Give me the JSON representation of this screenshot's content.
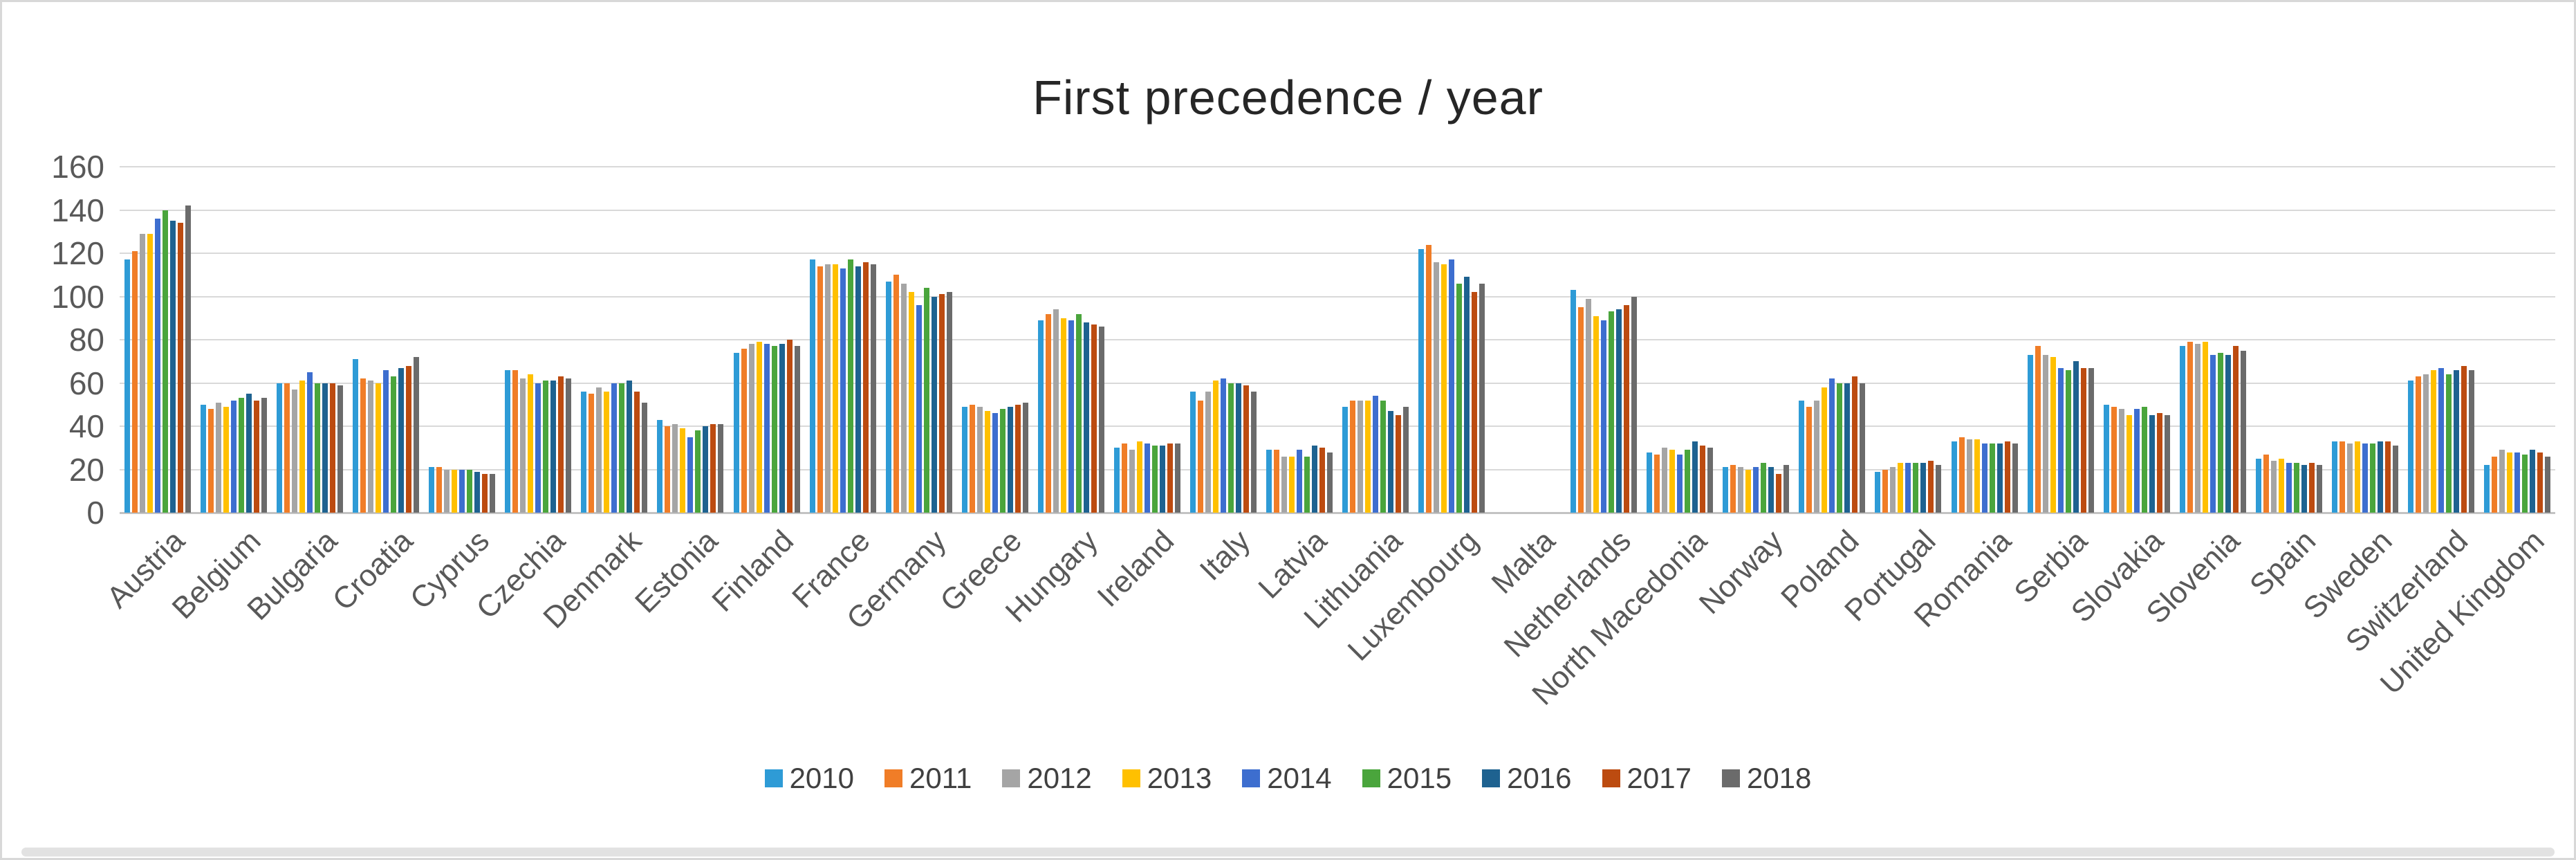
{
  "title": "First precedence / year",
  "chart_data": {
    "type": "bar",
    "title": "First precedence / year",
    "xlabel": "",
    "ylabel": "",
    "ylim": [
      0,
      160
    ],
    "ytick_step": 20,
    "yticks": [
      0,
      20,
      40,
      60,
      80,
      100,
      120,
      140,
      160
    ],
    "grid": true,
    "legend_position": "bottom",
    "categories": [
      "Austria",
      "Belgium",
      "Bulgaria",
      "Croatia",
      "Cyprus",
      "Czechia",
      "Denmark",
      "Estonia",
      "Finland",
      "France",
      "Germany",
      "Greece",
      "Hungary",
      "Ireland",
      "Italy",
      "Latvia",
      "Lithuania",
      "Luxembourg",
      "Malta",
      "Netherlands",
      "North Macedonia",
      "Norway",
      "Poland",
      "Portugal",
      "Romania",
      "Serbia",
      "Slovakia",
      "Slovenia",
      "Spain",
      "Sweden",
      "Switzerland",
      "United Kingdom"
    ],
    "series": [
      {
        "name": "2010",
        "color": "#2E9BD6",
        "values": [
          117,
          50,
          60,
          71,
          21,
          66,
          56,
          43,
          74,
          117,
          107,
          49,
          89,
          30,
          56,
          29,
          49,
          122,
          0,
          103,
          28,
          21,
          52,
          19,
          33,
          73,
          50,
          77,
          25,
          33,
          61,
          22
        ]
      },
      {
        "name": "2011",
        "color": "#F07D27",
        "values": [
          121,
          48,
          60,
          62,
          21,
          66,
          55,
          40,
          76,
          114,
          110,
          50,
          92,
          32,
          52,
          29,
          52,
          124,
          0,
          95,
          27,
          22,
          49,
          20,
          35,
          77,
          49,
          79,
          27,
          33,
          63,
          26
        ]
      },
      {
        "name": "2012",
        "color": "#A5A5A5",
        "values": [
          129,
          51,
          57,
          61,
          20,
          62,
          58,
          41,
          78,
          115,
          106,
          49,
          94,
          29,
          56,
          26,
          52,
          116,
          0,
          99,
          30,
          21,
          52,
          21,
          34,
          73,
          48,
          78,
          24,
          32,
          64,
          29
        ]
      },
      {
        "name": "2013",
        "color": "#FFC000",
        "values": [
          129,
          49,
          61,
          60,
          20,
          64,
          56,
          39,
          79,
          115,
          102,
          47,
          90,
          33,
          61,
          26,
          52,
          115,
          0,
          91,
          29,
          20,
          58,
          23,
          34,
          72,
          45,
          79,
          25,
          33,
          66,
          28
        ]
      },
      {
        "name": "2014",
        "color": "#3D6ECF",
        "values": [
          136,
          52,
          65,
          66,
          20,
          60,
          60,
          35,
          78,
          113,
          96,
          46,
          89,
          32,
          62,
          29,
          54,
          117,
          0,
          89,
          27,
          21,
          62,
          23,
          32,
          67,
          48,
          73,
          23,
          32,
          67,
          28
        ]
      },
      {
        "name": "2015",
        "color": "#4AA53C",
        "values": [
          140,
          53,
          60,
          63,
          20,
          61,
          60,
          38,
          77,
          117,
          104,
          48,
          92,
          31,
          60,
          26,
          52,
          106,
          0,
          93,
          29,
          23,
          60,
          23,
          32,
          66,
          49,
          74,
          23,
          32,
          64,
          27
        ]
      },
      {
        "name": "2016",
        "color": "#1E6290",
        "values": [
          135,
          55,
          60,
          67,
          19,
          61,
          61,
          40,
          78,
          114,
          100,
          49,
          88,
          31,
          60,
          31,
          47,
          109,
          0,
          94,
          33,
          21,
          60,
          23,
          32,
          70,
          45,
          73,
          22,
          33,
          66,
          29
        ]
      },
      {
        "name": "2017",
        "color": "#BC4B10",
        "values": [
          134,
          52,
          60,
          68,
          18,
          63,
          56,
          41,
          80,
          116,
          101,
          50,
          87,
          32,
          59,
          30,
          45,
          102,
          0,
          96,
          31,
          18,
          63,
          24,
          33,
          67,
          46,
          77,
          23,
          33,
          68,
          28
        ]
      },
      {
        "name": "2018",
        "color": "#6B6B6B",
        "values": [
          142,
          53,
          59,
          72,
          18,
          62,
          51,
          41,
          77,
          115,
          102,
          51,
          86,
          32,
          56,
          28,
          49,
          106,
          0,
          100,
          30,
          22,
          60,
          22,
          32,
          67,
          45,
          75,
          22,
          31,
          66,
          26
        ]
      }
    ]
  }
}
